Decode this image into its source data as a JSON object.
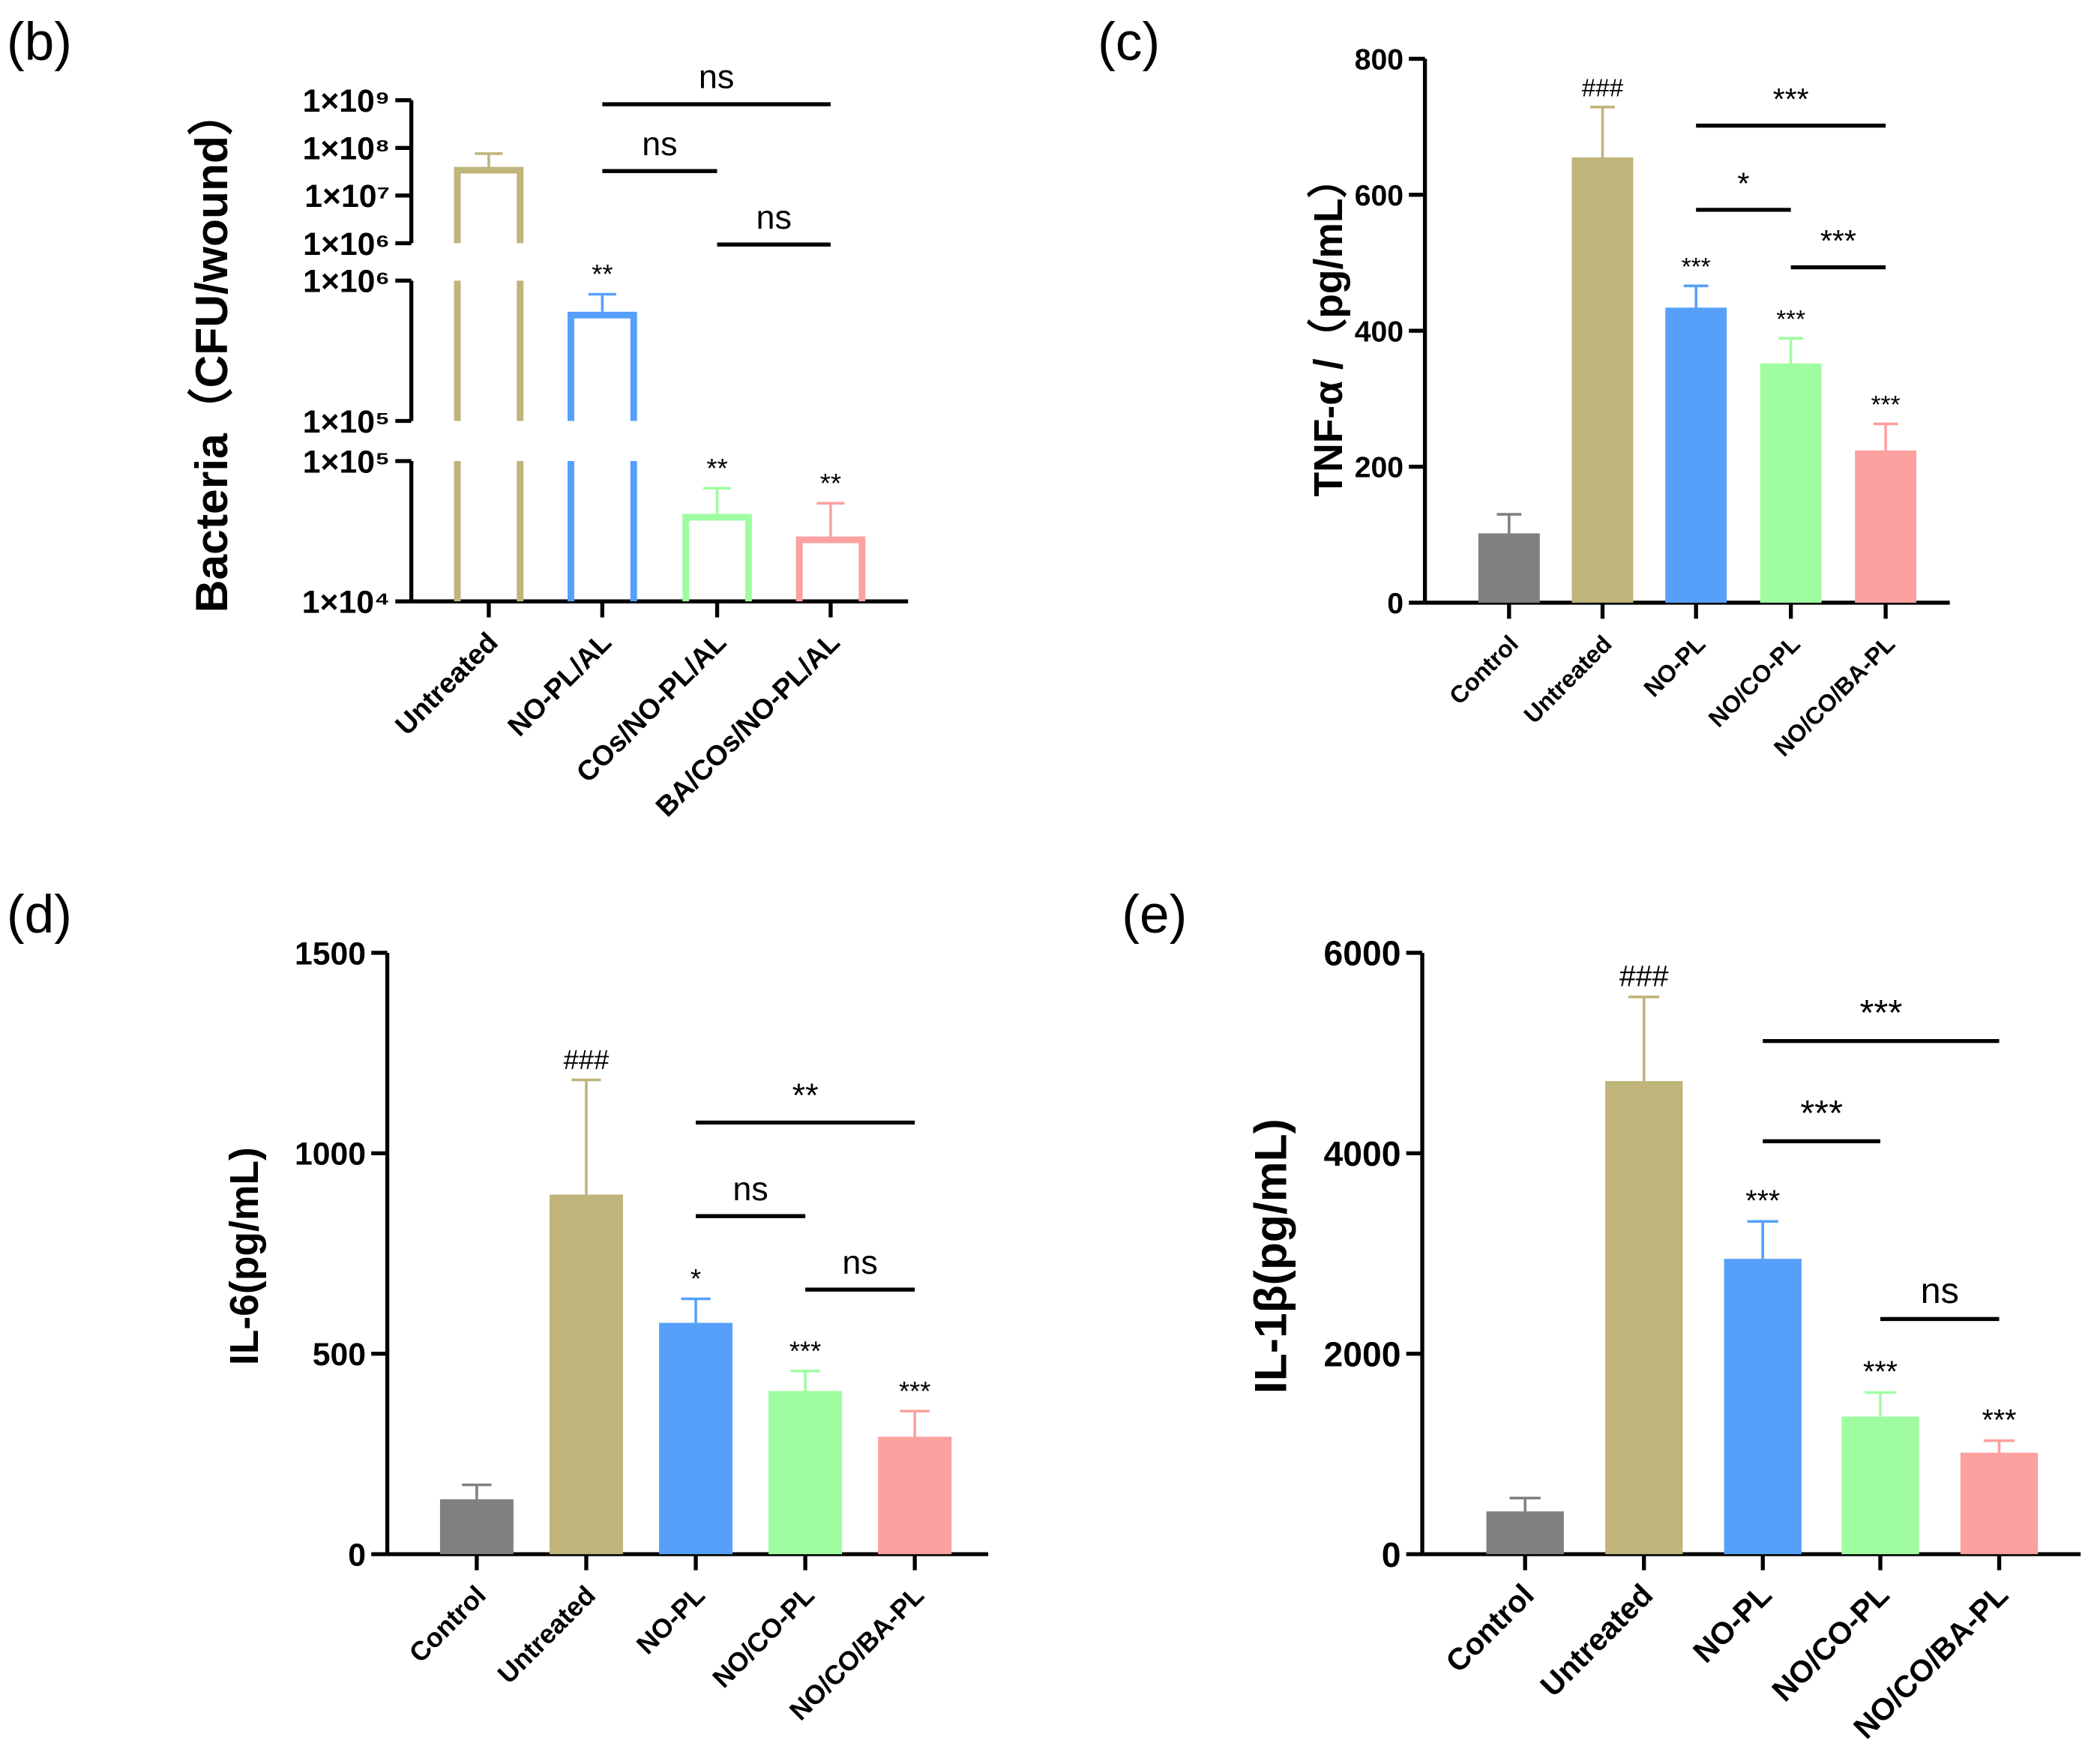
{
  "chart_data": [
    {
      "type": "bar",
      "panel": "(b)",
      "ylabel": "Bacteria（CFU/wound）",
      "log_scale": true,
      "outline": true,
      "categories": [
        "Untreated",
        "NO-PL/AL",
        "COs/NO-PL/AL",
        "BA/COs/NO-PL/AL"
      ],
      "values": [
        40000000,
        600000,
        42000,
        29000
      ],
      "errors": [
        36000000,
        200000,
        22000,
        21000
      ],
      "colors": [
        "#bfb47a",
        "#56a0fb",
        "#a0fca0",
        "#fca0a0"
      ],
      "bar_labels": [
        null,
        "**",
        "**",
        "**"
      ],
      "brackets": [
        {
          "label": "ns",
          "from": 1,
          "to": 3
        },
        {
          "label": "ns",
          "from": 1,
          "to": 2
        },
        {
          "label": "ns",
          "from": 2,
          "to": 3
        }
      ],
      "axis_segments": [
        {
          "ylim": [
            10000,
            100000
          ],
          "yticks": [
            {
              "value": 10000,
              "label": "1×10⁴"
            },
            {
              "value": 100000,
              "label": "1×10⁵"
            }
          ]
        },
        {
          "ylim": [
            100000,
            1000000
          ],
          "yticks": [
            {
              "value": 100000,
              "label": "1×10⁵"
            },
            {
              "value": 1000000,
              "label": "1×10⁶"
            }
          ]
        },
        {
          "ylim": [
            1000000,
            1000000000
          ],
          "yticks": [
            {
              "value": 1000000,
              "label": "1×10⁶"
            },
            {
              "value": 10000000,
              "label": "1×10⁷"
            },
            {
              "value": 100000000,
              "label": "1×10⁸"
            },
            {
              "value": 1000000000,
              "label": "1×10⁹"
            }
          ]
        }
      ]
    },
    {
      "type": "bar",
      "panel": "(c)",
      "ylabel": "TNF-α /（pg/mL）",
      "categories": [
        "Control",
        "Untreated",
        "NO-PL",
        "NO/CO-PL",
        "NO/CO/BA-PL"
      ],
      "values": [
        102,
        655,
        434,
        352,
        224
      ],
      "errors": [
        28,
        74,
        32,
        37,
        39
      ],
      "colors": [
        "#808080",
        "#bfb47a",
        "#56a0fb",
        "#a0fca0",
        "#fca0a0"
      ],
      "bar_labels": [
        null,
        "###",
        "***",
        "***",
        "***"
      ],
      "brackets": [
        {
          "label": "***",
          "from": 2,
          "to": 4
        },
        {
          "label": "*",
          "from": 2,
          "to": 3
        },
        {
          "label": "***",
          "from": 3,
          "to": 4
        }
      ],
      "ylim": [
        0,
        800
      ],
      "yticks": [
        0,
        200,
        400,
        600,
        800
      ]
    },
    {
      "type": "bar",
      "panel": "(d)",
      "ylabel": "IL-6(pg/mL)",
      "categories": [
        "Control",
        "Untreated",
        "NO-PL",
        "NO/CO-PL",
        "NO/CO/BA-PL"
      ],
      "values": [
        137,
        897,
        577,
        407,
        293
      ],
      "errors": [
        36,
        286,
        60,
        50,
        64
      ],
      "colors": [
        "#808080",
        "#bfb47a",
        "#56a0fb",
        "#a0fca0",
        "#fca0a0"
      ],
      "bar_labels": [
        null,
        "###",
        "*",
        "***",
        "***"
      ],
      "brackets": [
        {
          "label": "**",
          "from": 2,
          "to": 4
        },
        {
          "label": "ns",
          "from": 2,
          "to": 3
        },
        {
          "label": "ns",
          "from": 3,
          "to": 4
        }
      ],
      "ylim": [
        0,
        1500
      ],
      "yticks": [
        0,
        500,
        1000,
        1500
      ]
    },
    {
      "type": "bar",
      "panel": "(e)",
      "ylabel": "IL-1β(pg/mL)",
      "categories": [
        "Control",
        "Untreated",
        "NO-PL",
        "NO/CO-PL",
        "NO/CO/BA-PL"
      ],
      "values": [
        427,
        4720,
        2947,
        1373,
        1013
      ],
      "errors": [
        133,
        840,
        373,
        240,
        120
      ],
      "colors": [
        "#808080",
        "#bfb47a",
        "#56a0fb",
        "#a0fca0",
        "#fca0a0"
      ],
      "bar_labels": [
        null,
        "###",
        "***",
        "***",
        "***"
      ],
      "brackets": [
        {
          "label": "***",
          "from": 2,
          "to": 4
        },
        {
          "label": "***",
          "from": 2,
          "to": 3
        },
        {
          "label": "ns",
          "from": 3,
          "to": 4
        }
      ],
      "ylim": [
        0,
        6000
      ],
      "yticks": [
        0,
        2000,
        4000,
        6000
      ]
    }
  ]
}
